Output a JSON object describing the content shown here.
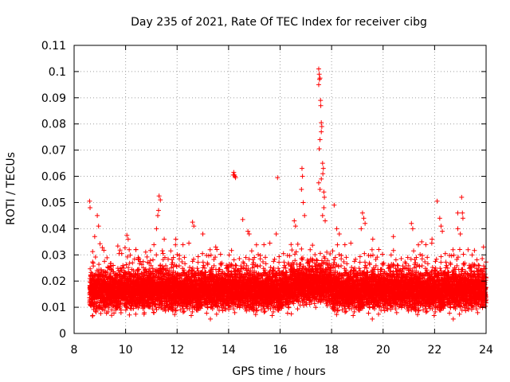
{
  "chart_data": {
    "type": "scatter",
    "title": "Day 235 of 2021, Rate Of TEC Index for receiver cibg",
    "xlabel": "GPS time / hours",
    "ylabel": "ROTI / TECUs",
    "xlim": [
      8,
      24
    ],
    "ylim": [
      0,
      0.11
    ],
    "x_ticks": [
      8,
      10,
      12,
      14,
      16,
      18,
      20,
      22,
      24
    ],
    "x_tick_labels": [
      "8",
      "10",
      "12",
      "14",
      "16",
      "18",
      "20",
      "22",
      "24"
    ],
    "y_ticks": [
      0,
      0.01,
      0.02,
      0.03,
      0.04,
      0.05,
      0.06,
      0.07,
      0.08,
      0.09,
      0.1,
      0.11
    ],
    "y_tick_labels": [
      "0",
      "0.01",
      "0.02",
      "0.03",
      "0.04",
      "0.05",
      "0.06",
      "0.07",
      "0.08",
      "0.09",
      "0.1",
      "0.11"
    ],
    "grid": true,
    "marker": "+",
    "color": "#ff0000",
    "series": [
      {
        "name": "ROTI",
        "points": [
          [
            8.6,
            0.0505
          ],
          [
            8.62,
            0.048
          ],
          [
            8.9,
            0.045
          ],
          [
            8.95,
            0.041
          ],
          [
            8.8,
            0.037
          ],
          [
            10.05,
            0.0375
          ],
          [
            10.1,
            0.036
          ],
          [
            10.4,
            0.032
          ],
          [
            11.3,
            0.0525
          ],
          [
            11.35,
            0.051
          ],
          [
            11.28,
            0.047
          ],
          [
            11.25,
            0.045
          ],
          [
            11.2,
            0.04
          ],
          [
            11.5,
            0.036
          ],
          [
            11.95,
            0.036
          ],
          [
            12.6,
            0.0425
          ],
          [
            12.65,
            0.041
          ],
          [
            13.0,
            0.038
          ],
          [
            13.5,
            0.033
          ],
          [
            14.2,
            0.0615
          ],
          [
            14.22,
            0.0605
          ],
          [
            14.25,
            0.06
          ],
          [
            14.27,
            0.0595
          ],
          [
            14.18,
            0.0605
          ],
          [
            14.55,
            0.0435
          ],
          [
            14.75,
            0.039
          ],
          [
            14.8,
            0.038
          ],
          [
            15.9,
            0.0595
          ],
          [
            15.85,
            0.038
          ],
          [
            16.55,
            0.043
          ],
          [
            16.6,
            0.041
          ],
          [
            16.85,
            0.063
          ],
          [
            16.87,
            0.06
          ],
          [
            16.83,
            0.055
          ],
          [
            16.9,
            0.05
          ],
          [
            16.95,
            0.045
          ],
          [
            17.5,
            0.101
          ],
          [
            17.52,
            0.099
          ],
          [
            17.53,
            0.097
          ],
          [
            17.55,
            0.0975
          ],
          [
            17.5,
            0.095
          ],
          [
            17.57,
            0.089
          ],
          [
            17.58,
            0.087
          ],
          [
            17.6,
            0.0805
          ],
          [
            17.62,
            0.079
          ],
          [
            17.6,
            0.077
          ],
          [
            17.55,
            0.074
          ],
          [
            17.52,
            0.0705
          ],
          [
            17.65,
            0.065
          ],
          [
            17.68,
            0.063
          ],
          [
            17.66,
            0.061
          ],
          [
            17.6,
            0.059
          ],
          [
            17.5,
            0.0575
          ],
          [
            17.55,
            0.055
          ],
          [
            17.7,
            0.054
          ],
          [
            17.72,
            0.052
          ],
          [
            17.7,
            0.048
          ],
          [
            17.65,
            0.045
          ],
          [
            17.75,
            0.043
          ],
          [
            18.1,
            0.049
          ],
          [
            18.2,
            0.04
          ],
          [
            18.3,
            0.038
          ],
          [
            19.2,
            0.046
          ],
          [
            19.25,
            0.044
          ],
          [
            19.3,
            0.042
          ],
          [
            19.15,
            0.04
          ],
          [
            19.6,
            0.036
          ],
          [
            20.4,
            0.037
          ],
          [
            21.1,
            0.042
          ],
          [
            21.15,
            0.04
          ],
          [
            21.5,
            0.035
          ],
          [
            21.9,
            0.036
          ],
          [
            22.1,
            0.0505
          ],
          [
            22.2,
            0.044
          ],
          [
            22.25,
            0.041
          ],
          [
            22.3,
            0.039
          ],
          [
            22.9,
            0.046
          ],
          [
            23.05,
            0.052
          ],
          [
            23.08,
            0.046
          ],
          [
            23.1,
            0.044
          ],
          [
            22.9,
            0.04
          ],
          [
            23.0,
            0.038
          ],
          [
            23.3,
            0.032
          ],
          [
            23.9,
            0.033
          ]
        ]
      }
    ]
  }
}
